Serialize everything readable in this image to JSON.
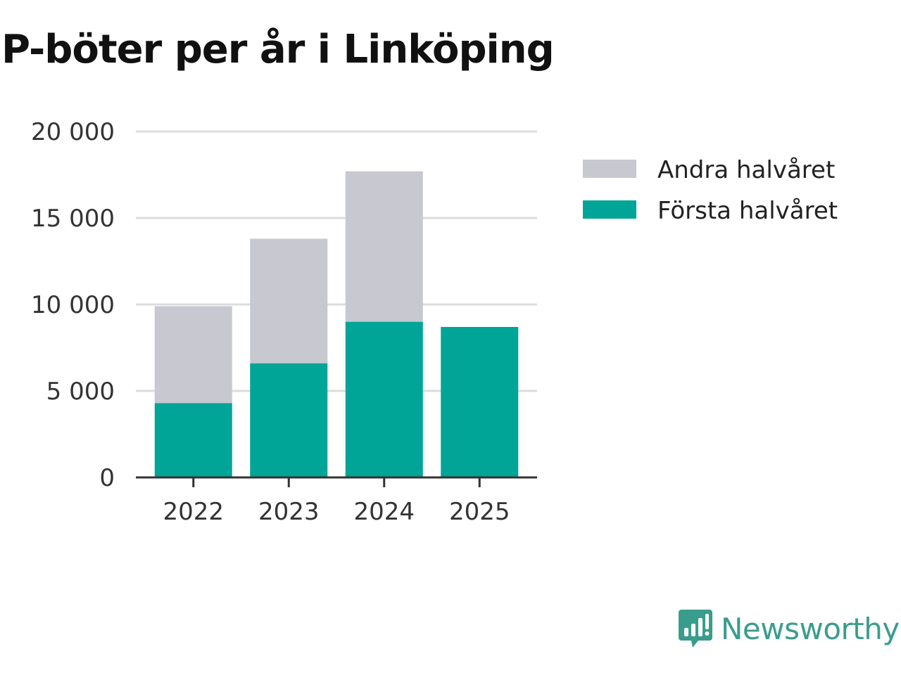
{
  "chart_data": {
    "type": "bar",
    "stacked": true,
    "title": "P-böter per år i Linköping",
    "categories": [
      "2022",
      "2023",
      "2024",
      "2025"
    ],
    "series": [
      {
        "name": "Första halvåret",
        "values": [
          4300,
          6600,
          9000,
          8700
        ],
        "color": "#00a598"
      },
      {
        "name": "Andra halvåret",
        "values": [
          5600,
          7200,
          8700,
          0
        ],
        "color": "#c8c8d0"
      }
    ],
    "ylim": [
      0,
      20000
    ],
    "yticks": [
      0,
      5000,
      10000,
      15000,
      20000
    ],
    "ytick_labels": [
      "0",
      "5 000",
      "10 000",
      "15 000",
      "20 000"
    ],
    "grid": true,
    "legend": "right",
    "legend_order": [
      "Andra halvåret",
      "Första halvåret"
    ]
  },
  "brand": {
    "name": "Newsworthy",
    "logo_icon": "chart-speech-bubble-icon",
    "color": "#3a9d8c"
  }
}
